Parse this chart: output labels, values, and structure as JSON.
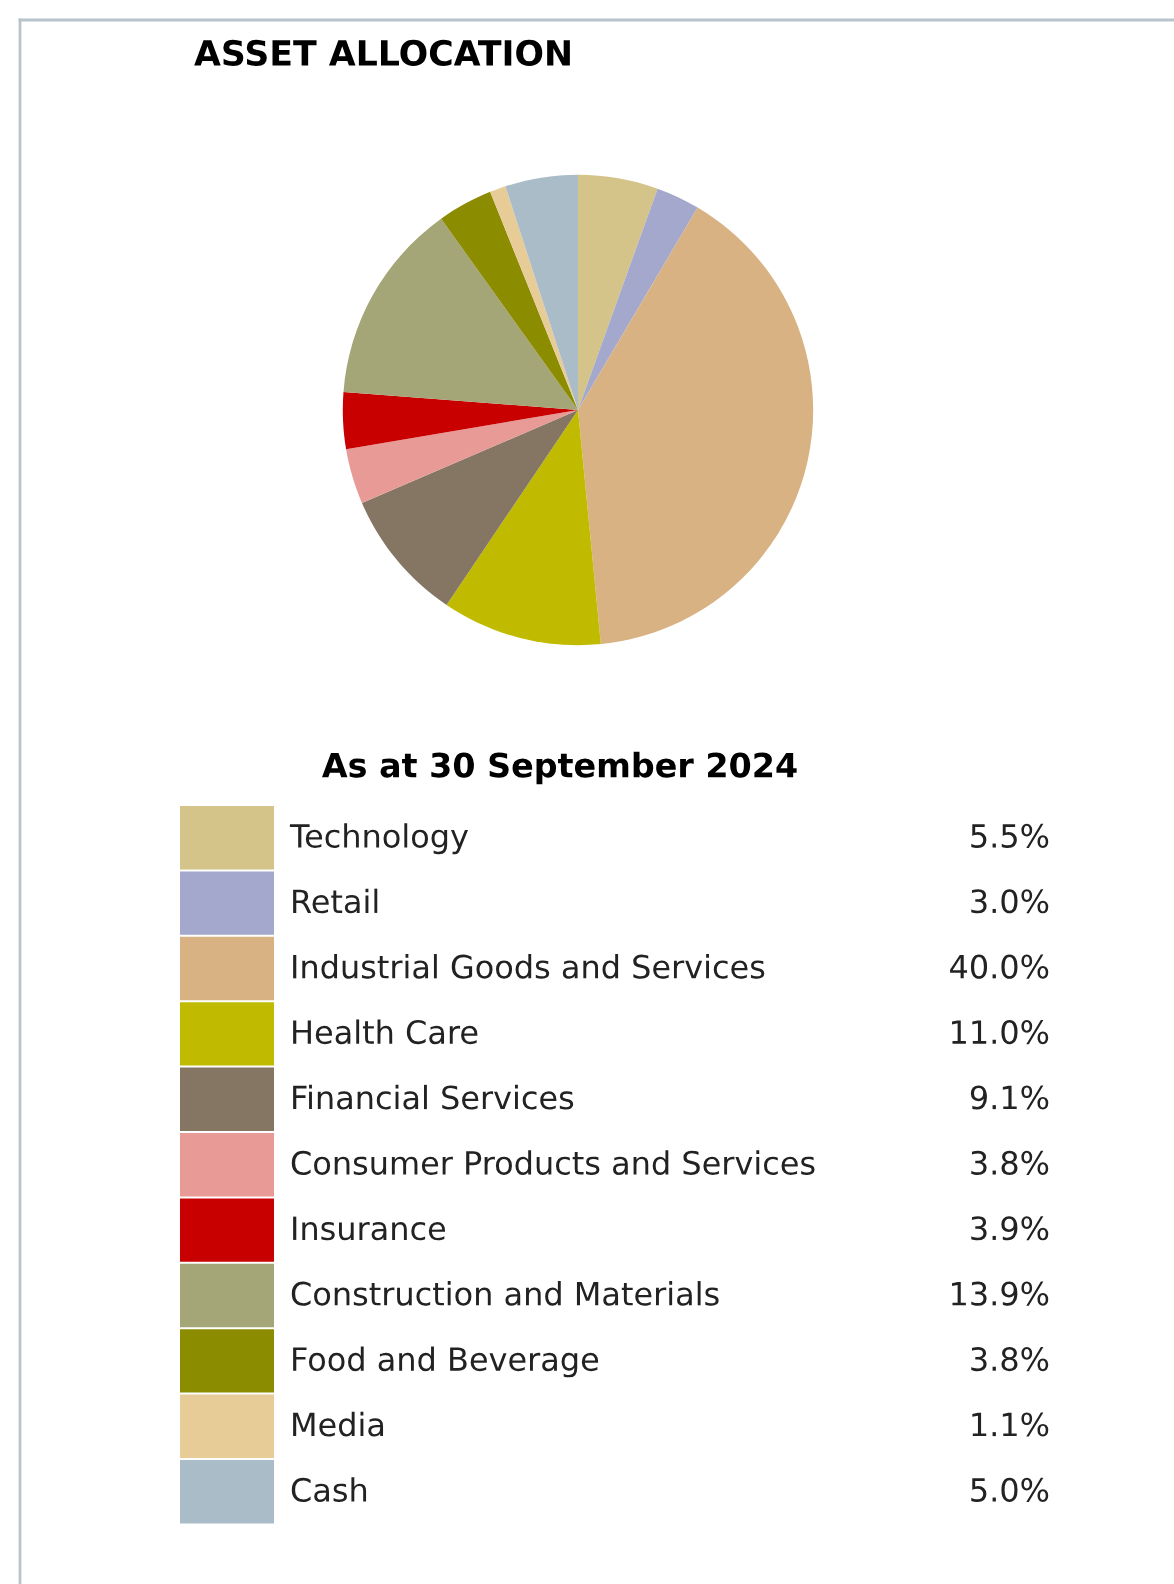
{
  "chart_data": {
    "type": "pie",
    "title": "ASSET ALLOCATION",
    "subtitle": "As at 30 September 2024",
    "categories": [
      "Technology",
      "Retail",
      "Industrial Goods and Services",
      "Health Care",
      "Financial Services",
      "Consumer Products and Services",
      "Insurance",
      "Construction and Materials",
      "Food and Beverage",
      "Media",
      "Cash"
    ],
    "values": [
      5.5,
      3.0,
      40.0,
      11.0,
      9.1,
      3.8,
      3.9,
      13.9,
      3.8,
      1.1,
      5.0
    ],
    "value_labels": [
      "5.5%",
      "3.0%",
      "40.0%",
      "11.0%",
      "9.1%",
      "3.8%",
      "3.9%",
      "13.9%",
      "3.8%",
      "1.1%",
      "5.0%"
    ],
    "colors": [
      "#d4c48a",
      "#a3a8cc",
      "#d8b283",
      "#c0bb00",
      "#857563",
      "#e89a96",
      "#c80000",
      "#a5a677",
      "#8c8c00",
      "#e8cc98",
      "#a9bcc8"
    ],
    "legend": "bottom"
  }
}
